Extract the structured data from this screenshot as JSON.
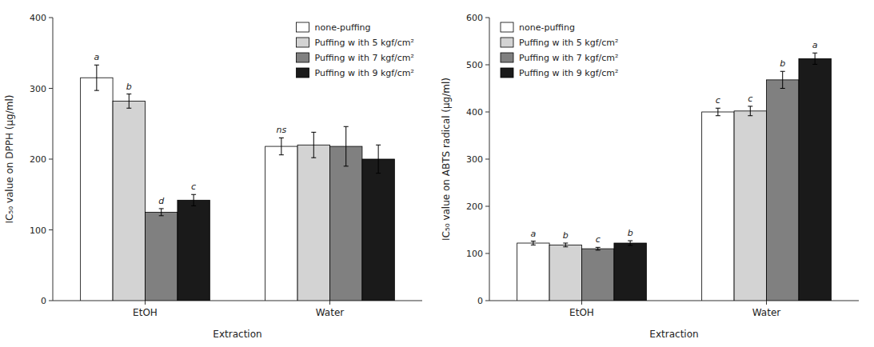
{
  "chart_data": [
    {
      "type": "bar",
      "xlabel": "Extraction",
      "ylabel": "IC₅₀ value on DPPH (μg/ml)",
      "categories": [
        "EtOH",
        "Water"
      ],
      "ylim": [
        0,
        400
      ],
      "yticks": [
        0,
        100,
        200,
        300,
        400
      ],
      "grid": false,
      "legend": "upper right",
      "series": [
        {
          "name": "none-puffing",
          "color": "#ffffff",
          "values": [
            315,
            218
          ],
          "errors": [
            18,
            12
          ],
          "letters": [
            "a",
            "ns"
          ]
        },
        {
          "name": "Puffing w ith 5 kgf/cm²",
          "color": "#d3d3d3",
          "values": [
            282,
            220
          ],
          "errors": [
            10,
            18
          ],
          "letters": [
            "b",
            null
          ]
        },
        {
          "name": "Puffing w ith 7 kgf/cm²",
          "color": "#808080",
          "values": [
            125,
            218
          ],
          "errors": [
            5,
            28
          ],
          "letters": [
            "d",
            null
          ]
        },
        {
          "name": "Puffing w ith 9 kgf/cm²",
          "color": "#1a1a1a",
          "values": [
            142,
            200
          ],
          "errors": [
            8,
            20
          ],
          "letters": [
            "c",
            null
          ]
        }
      ]
    },
    {
      "type": "bar",
      "xlabel": "Extraction",
      "ylabel": "IC₅₀ value on ABTS radical (μg/ml)",
      "categories": [
        "EtOH",
        "Water"
      ],
      "ylim": [
        0,
        600
      ],
      "yticks": [
        0,
        100,
        200,
        300,
        400,
        500,
        600
      ],
      "grid": false,
      "legend": "upper left",
      "series": [
        {
          "name": "none-puffing",
          "color": "#ffffff",
          "values": [
            122,
            400
          ],
          "errors": [
            4,
            8
          ],
          "letters": [
            "a",
            "c"
          ]
        },
        {
          "name": "Puffing w ith 5 kgf/cm²",
          "color": "#d3d3d3",
          "values": [
            118,
            402
          ],
          "errors": [
            4,
            10
          ],
          "letters": [
            "b",
            "c"
          ]
        },
        {
          "name": "Puffing w ith 7 kgf/cm²",
          "color": "#808080",
          "values": [
            110,
            468
          ],
          "errors": [
            3,
            18
          ],
          "letters": [
            "c",
            "b"
          ]
        },
        {
          "name": "Puffing w ith 9 kgf/cm²",
          "color": "#1a1a1a",
          "values": [
            122,
            513
          ],
          "errors": [
            5,
            12
          ],
          "letters": [
            "b",
            "a"
          ]
        }
      ]
    }
  ]
}
